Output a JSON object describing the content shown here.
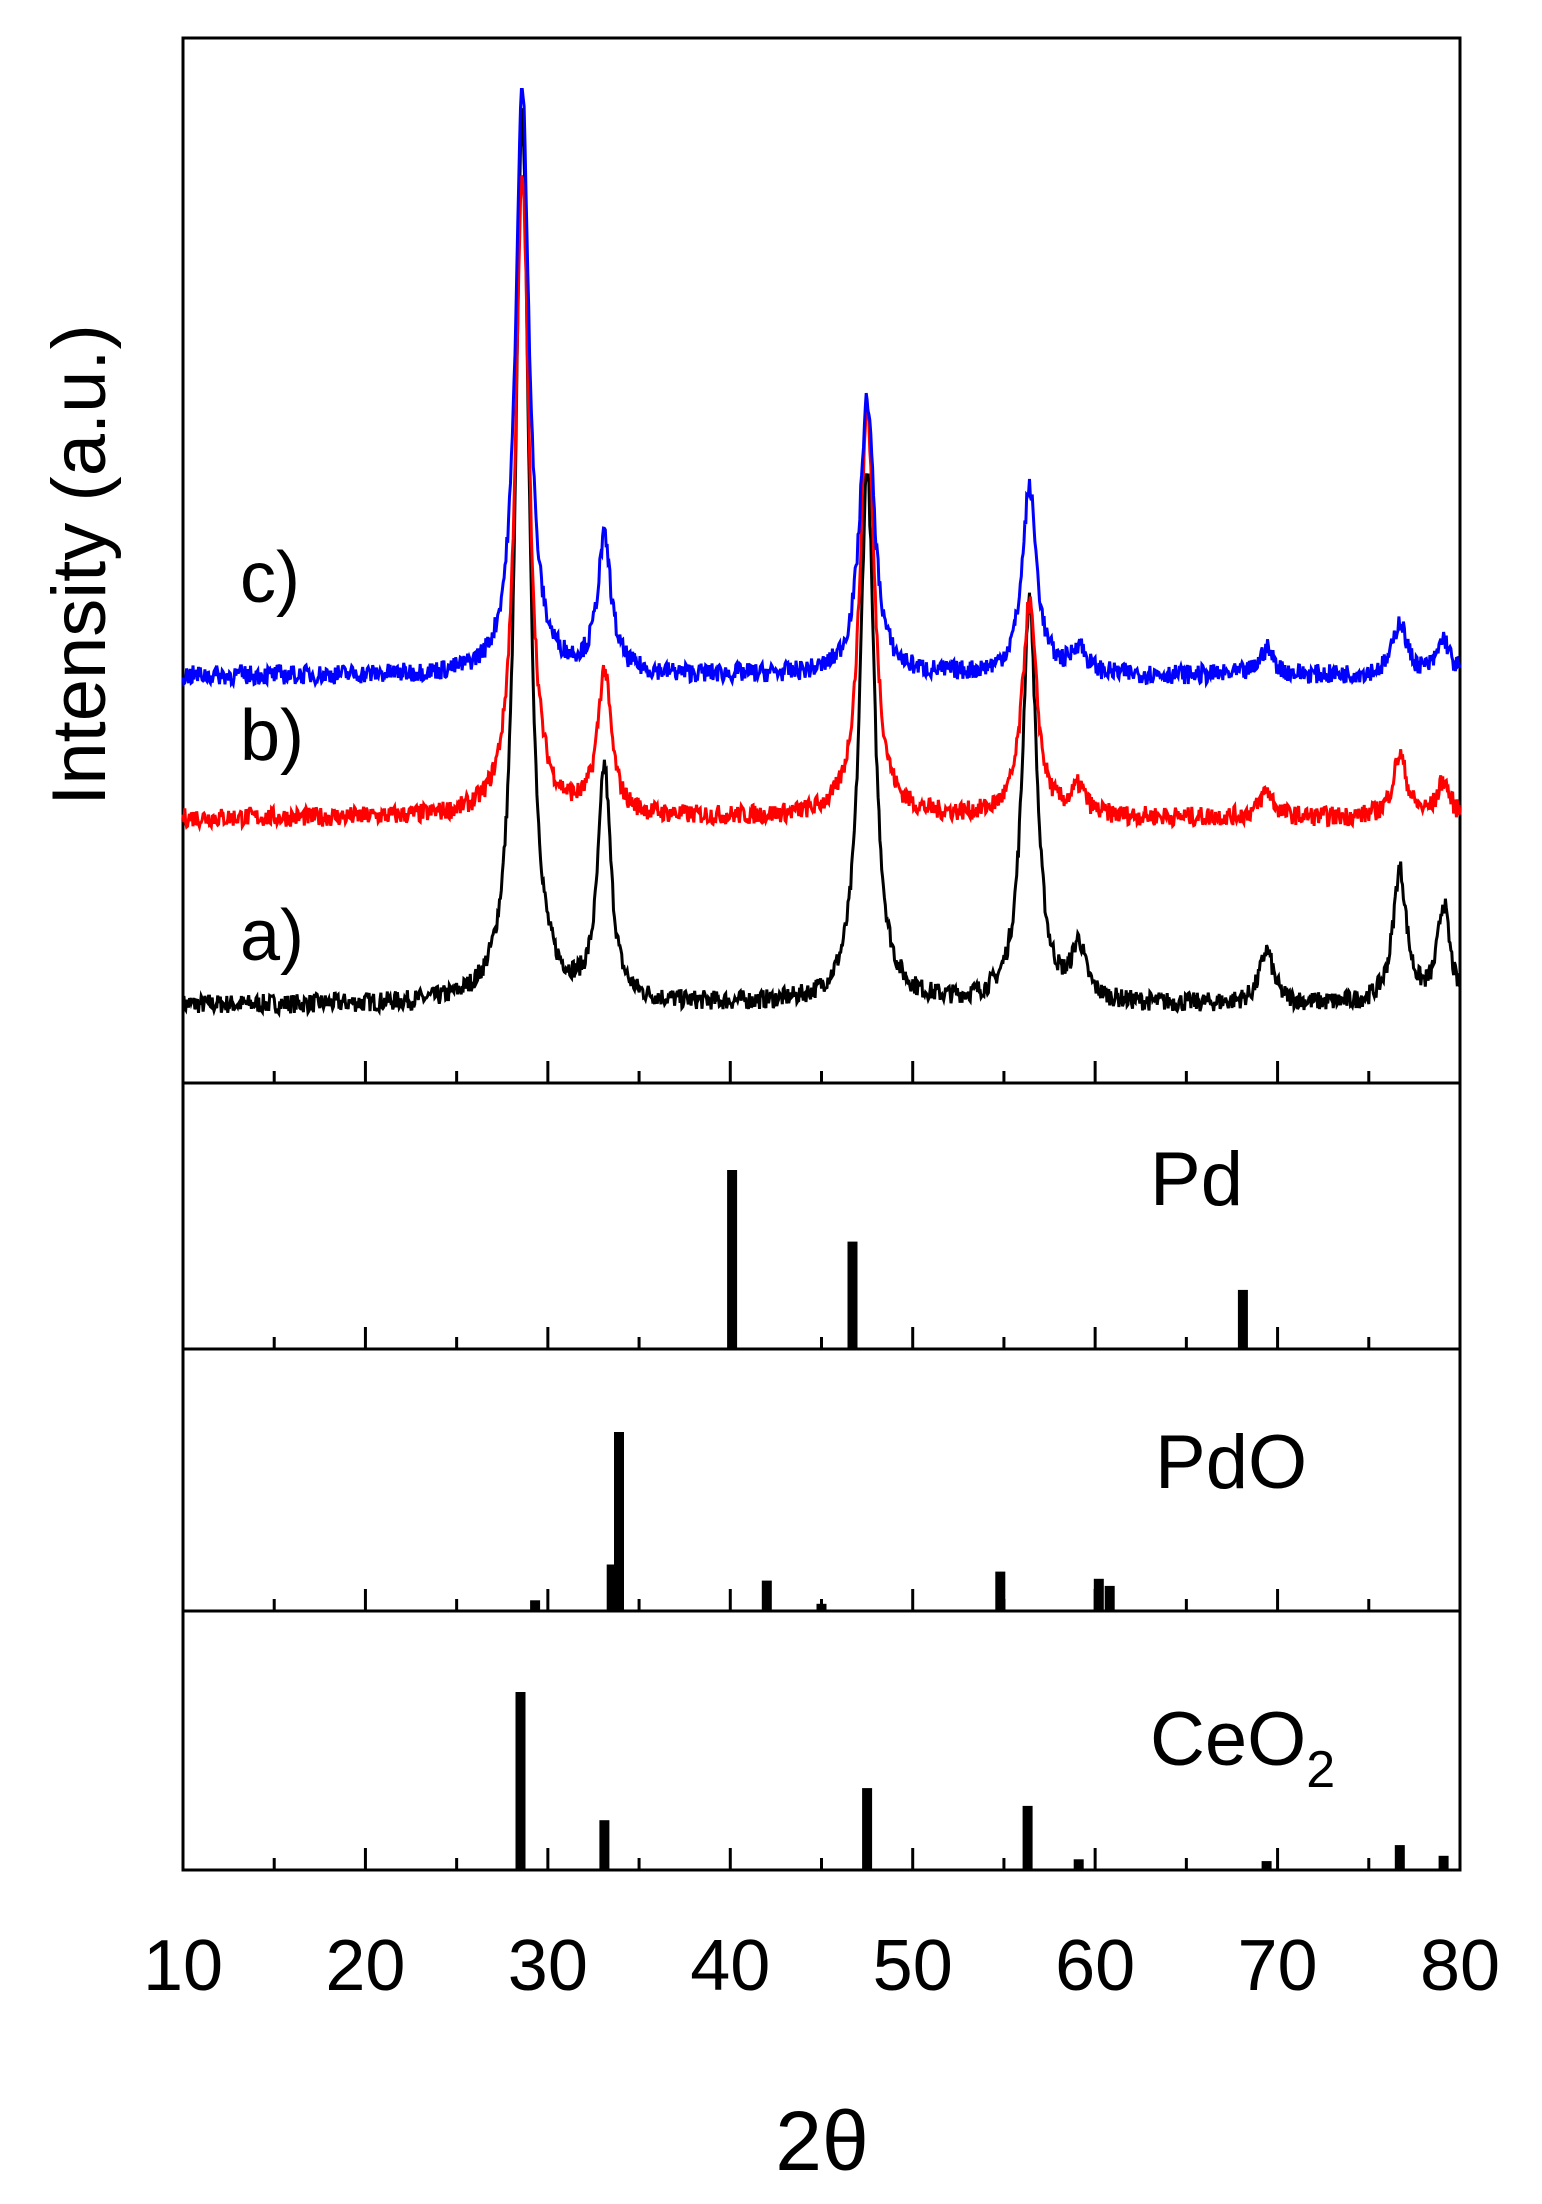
{
  "chart_data": {
    "type": "line",
    "xlabel": "2θ",
    "ylabel": "Intensity (a.u.)",
    "xlim": [
      10,
      80
    ],
    "xticks": [
      10,
      20,
      30,
      40,
      50,
      60,
      70,
      80
    ],
    "xticklabels": [
      "10",
      "20",
      "30",
      "40",
      "50",
      "60",
      "70",
      "80"
    ],
    "series_color_map": {
      "a)": "#000000",
      "b)": "#ff0000",
      "c)": "#0000ff"
    },
    "series": [
      {
        "name": "a)",
        "label": "a)",
        "color": "#000000",
        "baseline": 0,
        "peaks": [
          {
            "x": 28.6,
            "height": 100,
            "width": 0.45
          },
          {
            "x": 33.1,
            "height": 26,
            "width": 0.42
          },
          {
            "x": 47.5,
            "height": 60,
            "width": 0.48
          },
          {
            "x": 56.4,
            "height": 45,
            "width": 0.48
          },
          {
            "x": 59.1,
            "height": 6,
            "width": 0.45
          },
          {
            "x": 69.4,
            "height": 6,
            "width": 0.45
          },
          {
            "x": 76.7,
            "height": 15,
            "width": 0.45
          },
          {
            "x": 79.1,
            "height": 11,
            "width": 0.4
          }
        ]
      },
      {
        "name": "b)",
        "label": "b)",
        "color": "#ff0000",
        "baseline": 21,
        "peaks": [
          {
            "x": 28.6,
            "height": 72,
            "width": 0.45
          },
          {
            "x": 33.1,
            "height": 16,
            "width": 0.45
          },
          {
            "x": 47.5,
            "height": 46,
            "width": 0.48
          },
          {
            "x": 56.4,
            "height": 24,
            "width": 0.48
          },
          {
            "x": 59.1,
            "height": 3,
            "width": 0.45
          },
          {
            "x": 69.4,
            "height": 3,
            "width": 0.45
          },
          {
            "x": 76.7,
            "height": 7,
            "width": 0.45
          },
          {
            "x": 79.1,
            "height": 4,
            "width": 0.4
          }
        ]
      },
      {
        "name": "c)",
        "label": "c)",
        "color": "#0000ff",
        "baseline": 37,
        "peaks": [
          {
            "x": 28.6,
            "height": 66,
            "width": 0.45
          },
          {
            "x": 33.1,
            "height": 15,
            "width": 0.45
          },
          {
            "x": 47.5,
            "height": 31,
            "width": 0.48
          },
          {
            "x": 56.4,
            "height": 21,
            "width": 0.48
          },
          {
            "x": 59.1,
            "height": 3,
            "width": 0.45
          },
          {
            "x": 69.4,
            "height": 3,
            "width": 0.45
          },
          {
            "x": 76.7,
            "height": 6,
            "width": 0.45
          },
          {
            "x": 79.1,
            "height": 4,
            "width": 0.4
          }
        ]
      }
    ],
    "reference_patterns": [
      {
        "name": "Pd",
        "label_main": "Pd",
        "label_sub": "",
        "sticks": [
          {
            "x": 40.1,
            "intensity": 100
          },
          {
            "x": 46.7,
            "intensity": 60
          },
          {
            "x": 68.1,
            "intensity": 33
          }
        ]
      },
      {
        "name": "PdO",
        "label_main": "PdO",
        "label_sub": "",
        "sticks": [
          {
            "x": 29.3,
            "intensity": 6
          },
          {
            "x": 33.5,
            "intensity": 26
          },
          {
            "x": 33.9,
            "intensity": 100
          },
          {
            "x": 42.0,
            "intensity": 17
          },
          {
            "x": 45.0,
            "intensity": 4
          },
          {
            "x": 54.8,
            "intensity": 22
          },
          {
            "x": 60.2,
            "intensity": 18
          },
          {
            "x": 60.8,
            "intensity": 14
          }
        ]
      },
      {
        "name": "CeO2",
        "label_main": "CeO",
        "label_sub": "2",
        "sticks": [
          {
            "x": 28.5,
            "intensity": 100
          },
          {
            "x": 33.1,
            "intensity": 28
          },
          {
            "x": 47.5,
            "intensity": 46
          },
          {
            "x": 56.3,
            "intensity": 36
          },
          {
            "x": 59.1,
            "intensity": 6
          },
          {
            "x": 69.4,
            "intensity": 5
          },
          {
            "x": 76.7,
            "intensity": 14
          },
          {
            "x": 79.1,
            "intensity": 8
          }
        ]
      }
    ]
  }
}
